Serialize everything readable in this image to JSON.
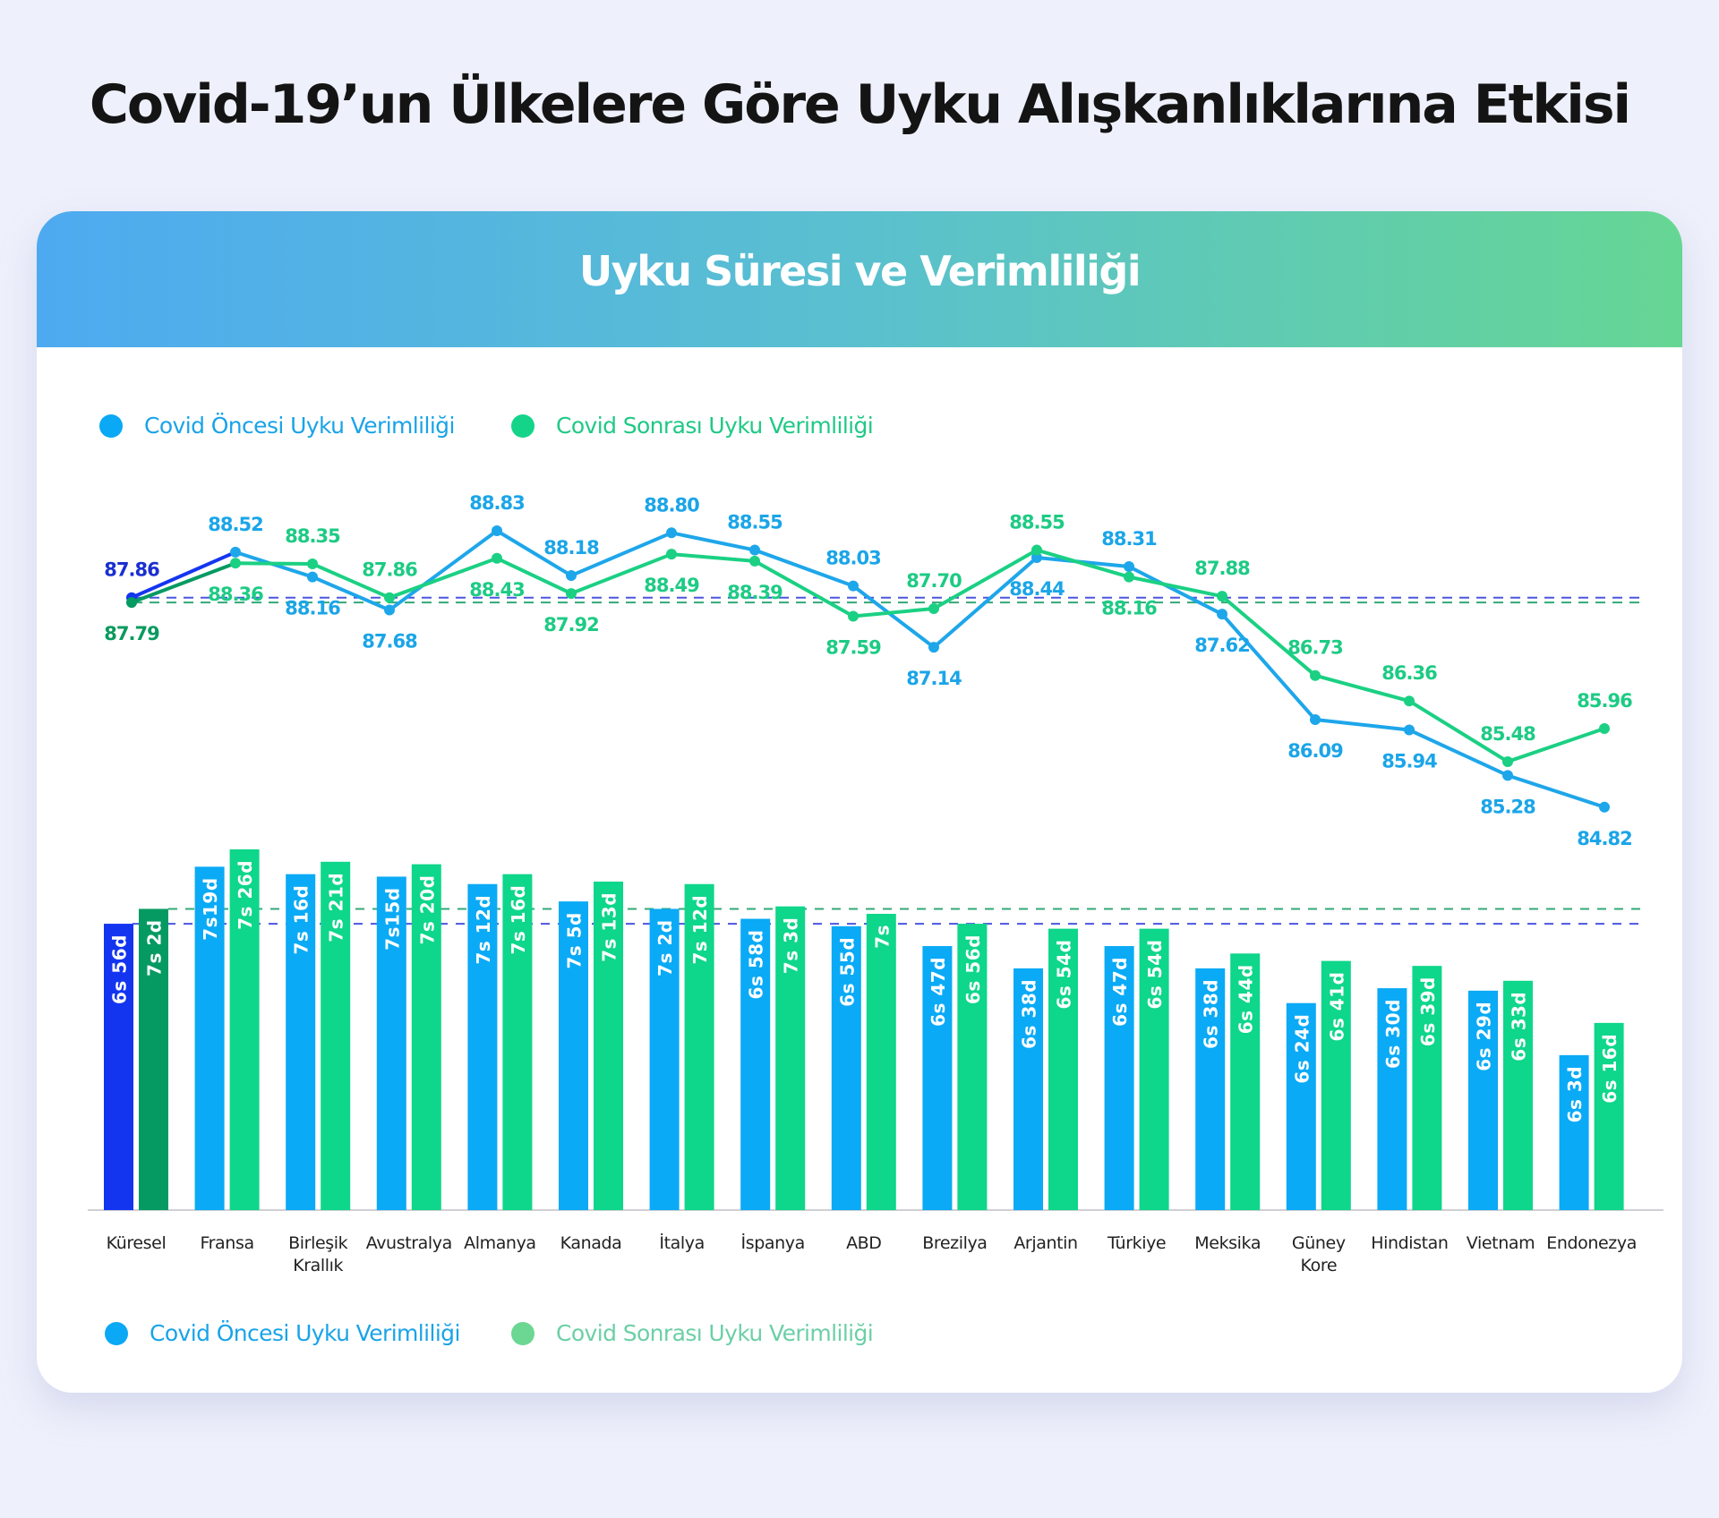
{
  "page": {
    "title": "Covid-19’un Ülkelere Göre Uyku Alışkanlıklarına Etkisi",
    "background": "#eef0fb"
  },
  "card": {
    "title": "Uyku Süresi ve Verimliliği",
    "gradient": [
      "#4eaaf0",
      "#66d694"
    ]
  },
  "legend_top": [
    {
      "label": "Covid Öncesi Uyku Verimliliği",
      "color": "#0aa8f5",
      "text_color": "#1aa3e8"
    },
    {
      "label": "Covid Sonrası Uyku Verimliliği",
      "color": "#14d48a",
      "text_color": "#1fc985"
    }
  ],
  "legend_bottom": [
    {
      "label": "Covid Öncesi Uyku Verimliliği",
      "color": "#0aa8f5",
      "text_color": "#1aa3e8"
    },
    {
      "label": "Covid Sonrası Uyku Verimliliği",
      "color": "#6bd792",
      "text_color": "#6ccfa6"
    }
  ],
  "colors": {
    "pre": "#0aaaf6",
    "post": "#0ed68a",
    "pre_line": "#1ea6ea",
    "post_line": "#1bd083",
    "global_pre": "#1435f0",
    "global_post": "#059a62",
    "global_pre_label": "#1a2fd0",
    "global_post_label": "#0a9a5e",
    "dash_pre": "#4a56e0",
    "dash_post": "#33a877",
    "pre_label": "#1ba5e8",
    "post_label": "#1dcb84"
  },
  "chart_data": [
    {
      "type": "line",
      "title": "Uyku Verimliliği",
      "categories": [
        "Küresel",
        "Fransa",
        "Birleşik Krallık",
        "Avustralya",
        "Almanya",
        "Kanada",
        "İtalya",
        "İspanya",
        "ABD",
        "Brezilya",
        "Arjantin",
        "Türkiye",
        "Meksika",
        "Güney Kore",
        "Hindistan",
        "Vietnam",
        "Endonezya"
      ],
      "series": [
        {
          "name": "Covid Öncesi Uyku Verimliliği",
          "values": [
            87.86,
            88.52,
            88.16,
            87.68,
            88.83,
            88.18,
            88.8,
            88.55,
            88.03,
            87.14,
            88.44,
            88.31,
            87.62,
            86.09,
            85.94,
            85.28,
            84.82
          ],
          "labels": [
            "87.86",
            "88.52",
            "88.16",
            "87.68",
            "88.83",
            "88.18",
            "88.80",
            "88.55",
            "88.03",
            "87.14",
            "88.44",
            "88.31",
            "87.62",
            "86.09",
            "85.94",
            "85.28",
            "84.82"
          ],
          "label_pos": [
            "above",
            "above",
            "below",
            "below",
            "above",
            "above",
            "above",
            "above",
            "above",
            "below",
            "below",
            "above",
            "below",
            "below",
            "below",
            "below",
            "below"
          ]
        },
        {
          "name": "Covid Sonrası Uyku Verimliliği",
          "values": [
            87.79,
            88.36,
            88.35,
            87.86,
            88.43,
            87.92,
            88.49,
            88.39,
            87.59,
            87.7,
            88.55,
            88.16,
            87.88,
            86.73,
            86.36,
            85.48,
            85.96
          ],
          "labels": [
            "87.79",
            "88.36",
            "88.35",
            "87.86",
            "88.43",
            "87.92",
            "88.49",
            "88.39",
            "87.59",
            "87.70",
            "88.55",
            "88.16",
            "87.88",
            "86.73",
            "86.36",
            "85.48",
            "85.96"
          ],
          "label_pos": [
            "below",
            "below",
            "above",
            "above",
            "below",
            "below",
            "below",
            "below",
            "below",
            "above",
            "above",
            "below",
            "above",
            "above",
            "above",
            "above",
            "above"
          ]
        }
      ],
      "reference_lines": [
        87.86,
        87.79
      ],
      "ylim": [
        84.5,
        89.0
      ],
      "grid": false
    },
    {
      "type": "bar",
      "title": "Uyku Süresi",
      "categories": [
        "Küresel",
        "Fransa",
        "Birleşik Krallık",
        "Avustralya",
        "Almanya",
        "Kanada",
        "İtalya",
        "İspanya",
        "ABD",
        "Brezilya",
        "Arjantin",
        "Türkiye",
        "Meksika",
        "Güney Kore",
        "Hindistan",
        "Vietnam",
        "Endonezya"
      ],
      "category_labels": [
        [
          "Küresel"
        ],
        [
          "Fransa"
        ],
        [
          "Birleşik",
          "Krallık"
        ],
        [
          "Avustralya"
        ],
        [
          "Almanya"
        ],
        [
          "Kanada"
        ],
        [
          "İtalya"
        ],
        [
          "İspanya"
        ],
        [
          "ABD"
        ],
        [
          "Brezilya"
        ],
        [
          "Arjantin"
        ],
        [
          "Türkiye"
        ],
        [
          "Meksika"
        ],
        [
          "Güney",
          "Kore"
        ],
        [
          "Hindistan"
        ],
        [
          "Vietnam"
        ],
        [
          "Endonezya"
        ]
      ],
      "series": [
        {
          "name": "Covid Öncesi",
          "values_minutes": [
            416,
            439,
            436,
            435,
            432,
            425,
            422,
            418,
            415,
            407,
            398,
            407,
            398,
            384,
            390,
            389,
            363
          ],
          "labels": [
            "6s 56d",
            "7s19d",
            "7s 16d",
            "7s15d",
            "7s 12d",
            "7s 5d",
            "7s 2d",
            "6s 58d",
            "6s 55d",
            "6s 47d",
            "6s 38d",
            "6s 47d",
            "6s 38d",
            "6s 24d",
            "6s 30d",
            "6s 29d",
            "6s 3d"
          ]
        },
        {
          "name": "Covid Sonrası",
          "values_minutes": [
            422,
            446,
            441,
            440,
            436,
            433,
            432,
            423,
            420,
            416,
            414,
            414,
            404,
            401,
            399,
            393,
            376
          ],
          "labels": [
            "7s 2d",
            "7s 26d",
            "7s 21d",
            "7s 20d",
            "7s 16d",
            "7s 13d",
            "7s 12d",
            "7s 3d",
            "7s",
            "6s 56d",
            "6s 54d",
            "6s 54d",
            "6s 44d",
            "6s 41d",
            "6s 39d",
            "6s 33d",
            "6s 16d"
          ]
        }
      ],
      "reference_lines_minutes": [
        416,
        422
      ],
      "xlabel": "",
      "ylabel": "",
      "grid": false
    }
  ]
}
